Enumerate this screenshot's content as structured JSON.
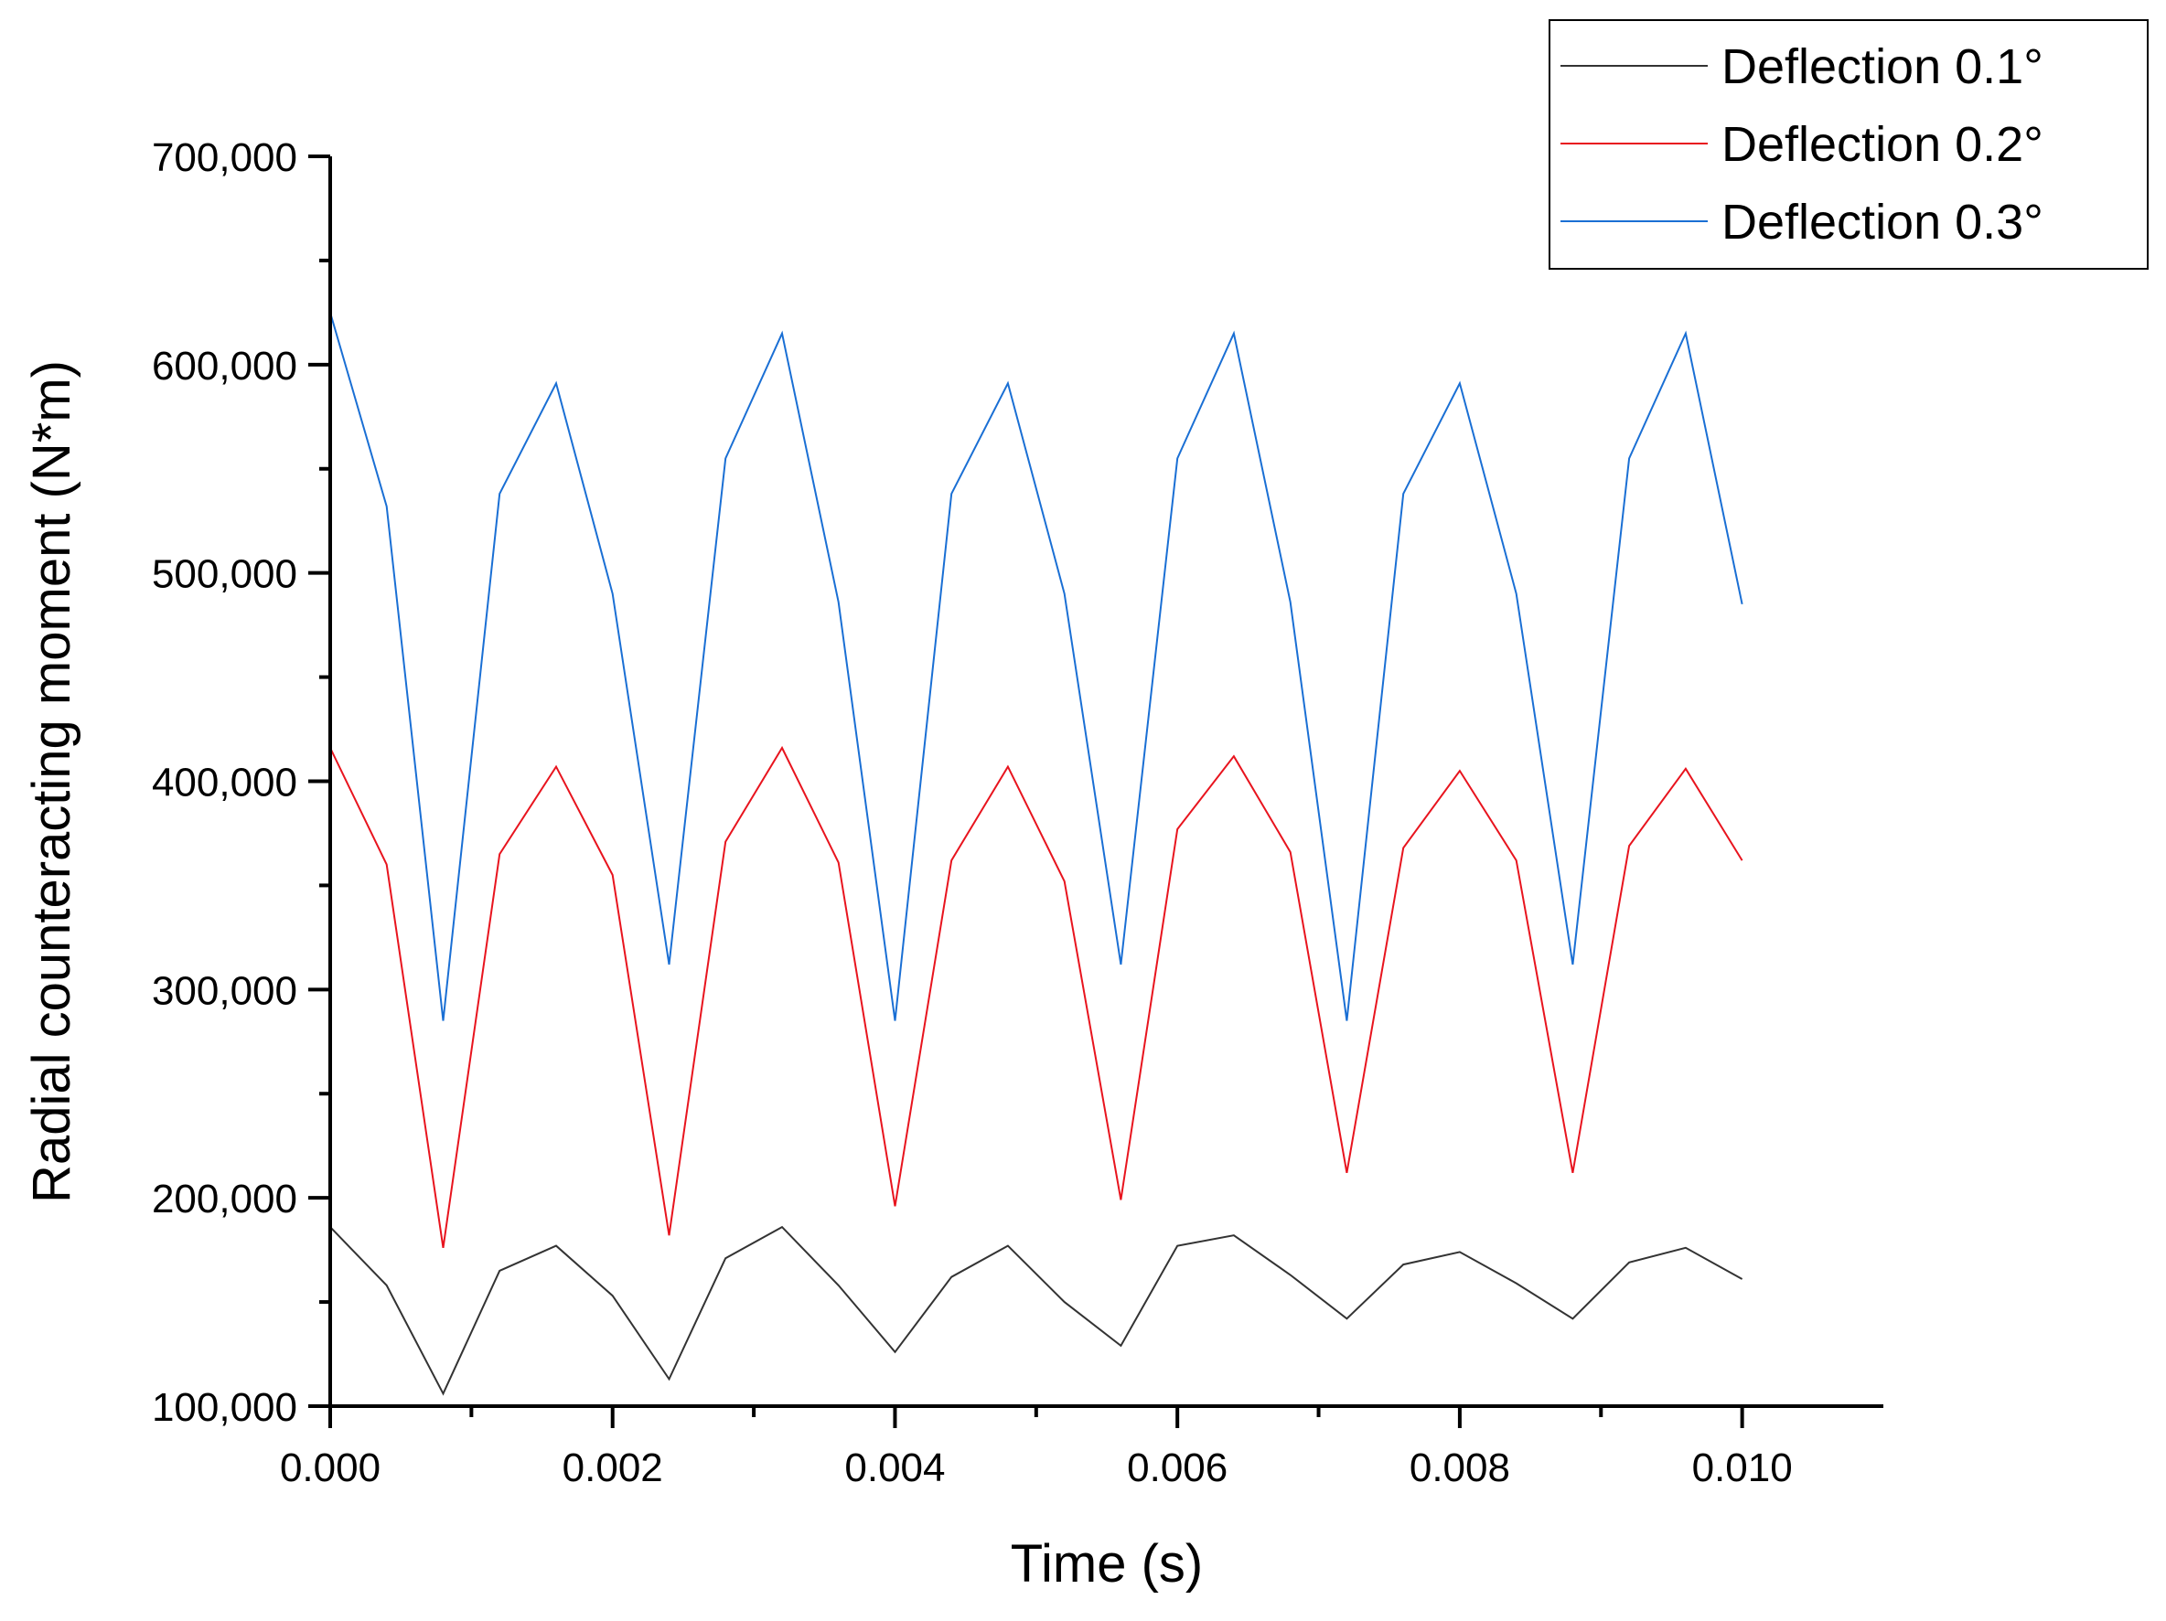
{
  "chart_data": {
    "type": "line",
    "title": "",
    "xlabel": "Time (s)",
    "ylabel": "Radial counteracting moment (N*m)",
    "xlim": [
      0,
      0.011
    ],
    "ylim": [
      100000,
      700000
    ],
    "x_ticks": [
      0,
      0.002,
      0.004,
      0.006,
      0.008,
      0.01
    ],
    "x_tick_labels": [
      "0.000",
      "0.002",
      "0.004",
      "0.006",
      "0.008",
      "0.010"
    ],
    "y_ticks": [
      100000,
      200000,
      300000,
      400000,
      500000,
      600000,
      700000
    ],
    "y_tick_labels": [
      "100,000",
      "200,000",
      "300,000",
      "400,000",
      "500,000",
      "600,000",
      "700,000"
    ],
    "grid": false,
    "legend_position": "top-right",
    "x": [
      0,
      0.0004,
      0.0008,
      0.0012,
      0.0016,
      0.002,
      0.0024,
      0.0028,
      0.0032,
      0.0036,
      0.004,
      0.0044,
      0.0048,
      0.0052,
      0.0056,
      0.006,
      0.0064,
      0.0068,
      0.0072,
      0.0076,
      0.008,
      0.0084,
      0.0088,
      0.0092,
      0.0096,
      0.01
    ],
    "series": [
      {
        "name": "Deflection 0.1°",
        "color": "#333333",
        "values": [
          186000,
          158000,
          106000,
          165000,
          177000,
          153000,
          113000,
          171000,
          186000,
          158000,
          126000,
          162000,
          177000,
          150000,
          129000,
          177000,
          182000,
          163000,
          142000,
          168000,
          174000,
          159000,
          142000,
          169000,
          176000,
          161000
        ]
      },
      {
        "name": "Deflection 0.2°",
        "color": "#e8141e",
        "values": [
          416000,
          360000,
          176000,
          365000,
          407000,
          355000,
          182000,
          371000,
          416000,
          361000,
          196000,
          362000,
          407000,
          352000,
          199000,
          377000,
          412000,
          366000,
          212000,
          368000,
          405000,
          362000,
          212000,
          369000,
          406000,
          362000
        ]
      },
      {
        "name": "Deflection 0.3°",
        "color": "#1a6fd4",
        "values": [
          625000,
          532000,
          285000,
          538000,
          591000,
          490000,
          312000,
          555000,
          615000,
          486000,
          285000,
          538000,
          591000,
          490000,
          312000,
          555000,
          615000,
          486000,
          285000,
          538000,
          591000,
          490000,
          312000,
          555000,
          615000,
          485000
        ]
      }
    ]
  }
}
